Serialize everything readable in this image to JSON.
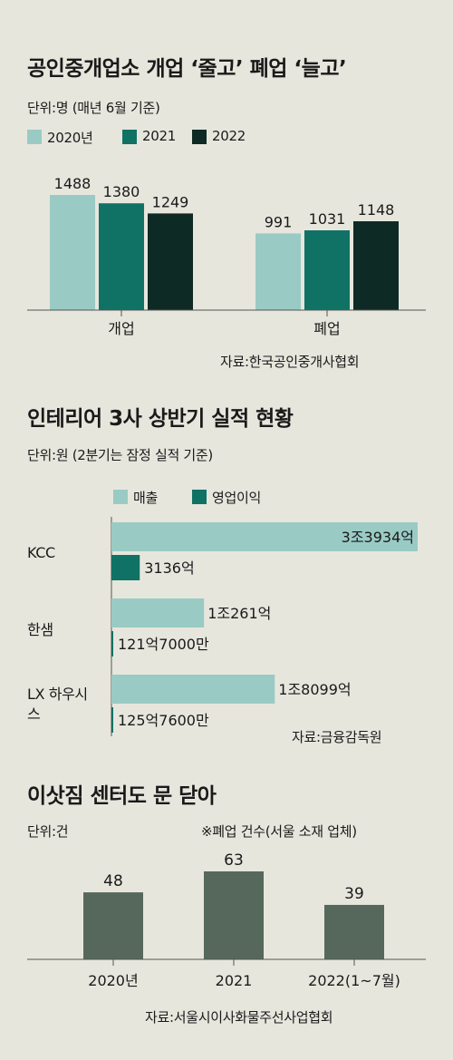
{
  "colors": {
    "background": "#e7e6dd",
    "c2020": "#99cbc4",
    "c2021": "#0f7265",
    "c2022": "#0e2a24",
    "sales": "#99cbc4",
    "op_income": "#0f7265",
    "closure_bar": "#56685b"
  },
  "chart1": {
    "title": "공인중개업소 개업 ‘줄고’ 폐업 ‘늘고’",
    "unit": "단위:명 (매년 6월 기준)",
    "legend": [
      "2020년",
      "2021",
      "2022"
    ],
    "source": "자료:한국공인중개사협회"
  },
  "chart2": {
    "title": "인테리어 3사 상반기 실적 현황",
    "unit": "단위:원 (2분기는 잠정 실적 기준)",
    "legend": [
      "매출",
      "영업이익"
    ],
    "source": "자료:금융감독원"
  },
  "chart3": {
    "title": "이삿짐 센터도 문 닫아",
    "unit": "단위:건",
    "note": "※폐업 건수(서울 소재 업체)",
    "source": "자료:서울시이사화물주선사업협회"
  },
  "chart_data": [
    {
      "type": "bar",
      "title": "공인중개업소 개업 ‘줄고’ 폐업 ‘늘고’",
      "categories": [
        "개업",
        "폐업"
      ],
      "series": [
        {
          "name": "2020년",
          "values": [
            1488,
            991
          ],
          "labels": [
            "1488",
            "991"
          ]
        },
        {
          "name": "2021",
          "values": [
            1380,
            1031
          ],
          "labels": [
            "1380",
            "1031"
          ]
        },
        {
          "name": "2022",
          "values": [
            1249,
            1148
          ],
          "labels": [
            "1249",
            "1148"
          ]
        }
      ],
      "ylim": [
        0,
        1488
      ],
      "legend": "top-left",
      "grid": false
    },
    {
      "type": "bar",
      "orientation": "horizontal",
      "title": "인테리어 3사 상반기 실적 현황",
      "categories": [
        "KCC",
        "한샘",
        "LX 하우시스"
      ],
      "series": [
        {
          "name": "매출",
          "values": [
            3393400000000,
            1026100000000,
            1809900000000
          ],
          "labels": [
            "3조3934억",
            "1조261억",
            "1조8099억"
          ]
        },
        {
          "name": "영업이익",
          "values": [
            313600000000,
            12170000000,
            12576000000
          ],
          "labels": [
            "3136억",
            "121억7000만",
            "125억7600만"
          ]
        }
      ],
      "xlim": [
        0,
        3393400000000
      ],
      "legend": "top",
      "grid": false
    },
    {
      "type": "bar",
      "title": "이삿짐 센터도 문 닫아",
      "categories": [
        "2020년",
        "2021",
        "2022(1~7월)"
      ],
      "values": [
        48,
        63,
        39
      ],
      "labels": [
        "48",
        "63",
        "39"
      ],
      "ylim": [
        0,
        63
      ],
      "grid": false
    }
  ]
}
